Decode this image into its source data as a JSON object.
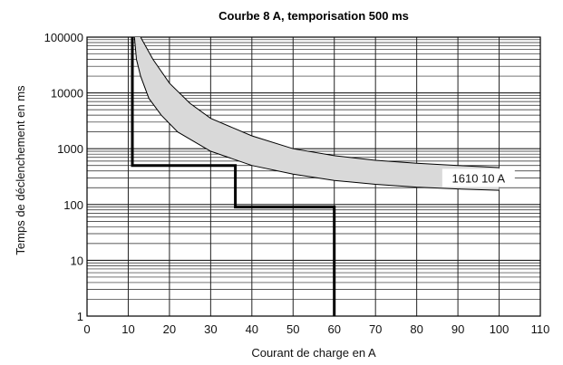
{
  "chart_data": {
    "type": "line",
    "title": "Courbe 8 A, temporisation 500 ms",
    "xlabel": "Courant de charge en A",
    "ylabel": "Temps de déclenchement en ms",
    "xlim": [
      0,
      110
    ],
    "ylim": [
      1,
      100000
    ],
    "yscale": "log",
    "grid": true,
    "x_ticks": [
      0,
      10,
      20,
      30,
      40,
      50,
      60,
      70,
      80,
      90,
      100,
      110
    ],
    "y_ticks": [
      1,
      10,
      100,
      1000,
      10000,
      100000
    ],
    "y_tick_labels": [
      "1",
      "10",
      "100",
      "1000",
      "10000",
      "100000"
    ],
    "colors": {
      "grid": "#222222",
      "band_fill": "#d9d9d9",
      "line": "#000000"
    },
    "series": [
      {
        "role": "trip-curve-8A",
        "x": [
          11,
          11,
          11.5,
          36,
          36,
          60,
          60
        ],
        "y": [
          100000,
          500,
          500,
          500,
          90,
          90,
          1
        ]
      },
      {
        "role": "band-upper",
        "x": [
          13,
          16,
          20,
          25,
          30,
          40,
          50,
          60,
          70,
          80,
          90,
          100
        ],
        "y": [
          100000,
          40000,
          15000,
          6500,
          3500,
          1700,
          1000,
          750,
          620,
          550,
          500,
          460
        ]
      },
      {
        "role": "band-lower",
        "x": [
          11.5,
          12,
          13,
          15,
          18,
          22,
          30,
          40,
          50,
          60,
          70,
          80,
          90,
          100
        ],
        "y": [
          100000,
          40000,
          20000,
          8000,
          4000,
          2000,
          900,
          500,
          350,
          270,
          230,
          205,
          190,
          180
        ]
      }
    ],
    "annotations": [
      {
        "text": "1610 10 A",
        "x": 95,
        "y": 300
      }
    ]
  }
}
